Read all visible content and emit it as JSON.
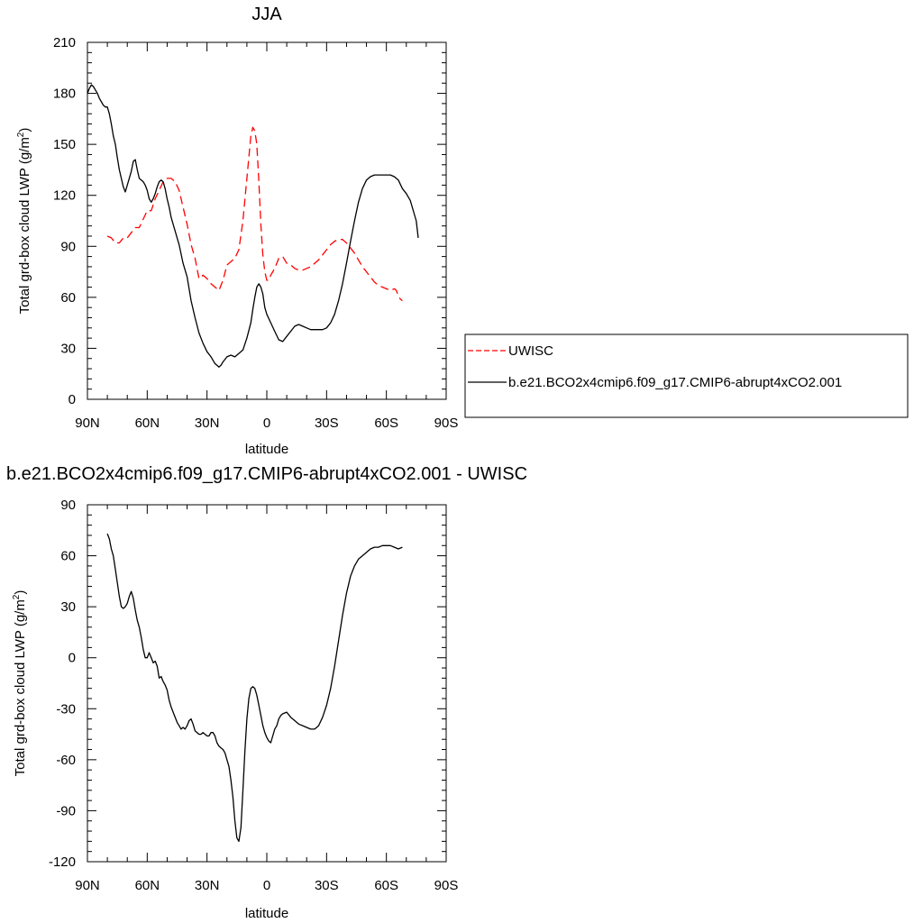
{
  "chart_data": [
    {
      "type": "line",
      "title": "JJA",
      "xlabel": "latitude",
      "ylabel_main": "Total grd-box cloud LWP (g/m",
      "ylabel_sup": "2",
      "ylabel_close": ")",
      "xlim": [
        90,
        -90
      ],
      "ylim": [
        0,
        210
      ],
      "x_ticks": [
        {
          "value": 90,
          "label": "90N"
        },
        {
          "value": 60,
          "label": "60N"
        },
        {
          "value": 30,
          "label": "30N"
        },
        {
          "value": 0,
          "label": "0"
        },
        {
          "value": -30,
          "label": "30S"
        },
        {
          "value": -60,
          "label": "60S"
        },
        {
          "value": -90,
          "label": "90S"
        }
      ],
      "y_ticks": [
        {
          "value": 0,
          "label": "0"
        },
        {
          "value": 30,
          "label": "30"
        },
        {
          "value": 60,
          "label": "60"
        },
        {
          "value": 90,
          "label": "90"
        },
        {
          "value": 120,
          "label": "120"
        },
        {
          "value": 150,
          "label": "150"
        },
        {
          "value": 180,
          "label": "180"
        },
        {
          "value": 210,
          "label": "210"
        }
      ],
      "legend": {
        "placement": "right"
      },
      "series": [
        {
          "name": "UWISC",
          "color": "#ff0000",
          "dash": "dashed",
          "x": [
            80,
            78,
            76,
            74,
            72,
            70,
            68,
            66,
            64,
            62,
            60,
            58,
            56,
            54,
            52,
            50,
            48,
            46,
            44,
            42,
            40,
            38,
            36,
            34,
            32,
            30,
            28,
            26,
            24,
            22,
            20,
            18,
            16,
            14,
            12,
            10,
            8,
            7,
            6,
            5,
            4,
            3,
            2,
            1,
            0,
            -1,
            -2,
            -4,
            -6,
            -8,
            -10,
            -12,
            -14,
            -16,
            -18,
            -20,
            -22,
            -24,
            -26,
            -28,
            -30,
            -32,
            -34,
            -36,
            -38,
            -40,
            -42,
            -44,
            -46,
            -48,
            -50,
            -52,
            -54,
            -56,
            -58,
            -60,
            -62,
            -64,
            -65,
            -66,
            -67,
            -68
          ],
          "values": [
            96,
            95,
            92,
            92,
            95,
            95,
            98,
            101,
            101,
            106,
            111,
            111,
            118,
            123,
            128,
            130,
            130,
            128,
            123,
            113,
            103,
            91,
            83,
            71,
            73,
            71,
            68,
            66,
            64,
            70,
            79,
            81,
            83,
            88,
            105,
            130,
            155,
            160,
            158,
            150,
            128,
            103,
            85,
            75,
            70,
            70,
            73,
            77,
            83,
            84,
            80,
            79,
            77,
            76,
            76,
            77,
            78,
            80,
            82,
            85,
            88,
            91,
            93,
            94,
            94,
            92,
            89,
            86,
            82,
            78,
            75,
            72,
            69,
            67,
            66,
            65,
            64,
            65,
            64,
            61,
            59,
            58
          ]
        },
        {
          "name": "b.e21.BCO2x4cmip6.f09_g17.CMIP6-abrupt4xCO2.001",
          "color": "#000000",
          "dash": "solid",
          "x": [
            90,
            89,
            88,
            87,
            86,
            85,
            84,
            83,
            82,
            81,
            80,
            79,
            78,
            77,
            76,
            75,
            74,
            73,
            72,
            71,
            70,
            69,
            68,
            67,
            66,
            65,
            64,
            63,
            62,
            61,
            60,
            59,
            58,
            57,
            56,
            55,
            54,
            53,
            52,
            51,
            50,
            49,
            48,
            47,
            46,
            45,
            44,
            42,
            40,
            38,
            36,
            34,
            32,
            30,
            28,
            26,
            25,
            24,
            23,
            22,
            20,
            18,
            16,
            14,
            12,
            10,
            8,
            7,
            6,
            5,
            4,
            3,
            2,
            1,
            0,
            -2,
            -4,
            -6,
            -8,
            -10,
            -12,
            -14,
            -16,
            -18,
            -20,
            -22,
            -24,
            -26,
            -28,
            -30,
            -32,
            -34,
            -36,
            -38,
            -40,
            -42,
            -44,
            -46,
            -48,
            -50,
            -52,
            -54,
            -56,
            -58,
            -60,
            -62,
            -64,
            -66,
            -68,
            -70,
            -72,
            -74,
            -75,
            -76
          ],
          "values": [
            180,
            183,
            185,
            184,
            182,
            180,
            177,
            175,
            173,
            172,
            172,
            168,
            162,
            155,
            150,
            142,
            135,
            130,
            125,
            122,
            126,
            130,
            134,
            140,
            141,
            135,
            130,
            129,
            128,
            126,
            123,
            118,
            116,
            118,
            121,
            125,
            128,
            129,
            128,
            124,
            118,
            113,
            107,
            103,
            99,
            95,
            91,
            80,
            72,
            58,
            48,
            39,
            33,
            28,
            25,
            21,
            20,
            19,
            20,
            22,
            25,
            26,
            25,
            27,
            29,
            36,
            45,
            53,
            60,
            66,
            68,
            66,
            62,
            54,
            50,
            45,
            40,
            35,
            34,
            37,
            40,
            43,
            44,
            43,
            42,
            41,
            41,
            41,
            41,
            42,
            45,
            50,
            58,
            68,
            80,
            93,
            105,
            116,
            124,
            129,
            131,
            132,
            132,
            132,
            132,
            132,
            131,
            129,
            124,
            121,
            117,
            109,
            105,
            95
          ]
        }
      ]
    },
    {
      "type": "line",
      "title": "b.e21.BCO2x4cmip6.f09_g17.CMIP6-abrupt4xCO2.001 - UWISC",
      "xlabel": "latitude",
      "ylabel_main": "Total grd-box cloud LWP (g/m",
      "ylabel_sup": "2",
      "ylabel_close": ")",
      "xlim": [
        90,
        -90
      ],
      "ylim": [
        -120,
        90
      ],
      "x_ticks": [
        {
          "value": 90,
          "label": "90N"
        },
        {
          "value": 60,
          "label": "60N"
        },
        {
          "value": 30,
          "label": "30N"
        },
        {
          "value": 0,
          "label": "0"
        },
        {
          "value": -30,
          "label": "30S"
        },
        {
          "value": -60,
          "label": "60S"
        },
        {
          "value": -90,
          "label": "90S"
        }
      ],
      "y_ticks": [
        {
          "value": -120,
          "label": "-120"
        },
        {
          "value": -90,
          "label": "-90"
        },
        {
          "value": -60,
          "label": "-60"
        },
        {
          "value": -30,
          "label": "-30"
        },
        {
          "value": 0,
          "label": "0"
        },
        {
          "value": 30,
          "label": "30"
        },
        {
          "value": 60,
          "label": "60"
        },
        {
          "value": 90,
          "label": "90"
        }
      ],
      "series": [
        {
          "name": "",
          "color": "#000000",
          "dash": "solid",
          "x": [
            80,
            79,
            78,
            77,
            76,
            75,
            74,
            73,
            72,
            71,
            70,
            69,
            68,
            67,
            66,
            65,
            64,
            63,
            62,
            61,
            60,
            59,
            58,
            57,
            56,
            55,
            54,
            53,
            52,
            51,
            50,
            49,
            48,
            47,
            46,
            45,
            44,
            43,
            42,
            41,
            40,
            39,
            38,
            37,
            36,
            35,
            34,
            33,
            32,
            31,
            30,
            29,
            28,
            27,
            26,
            25,
            24,
            23,
            22,
            21,
            20,
            19,
            18,
            17,
            16,
            15,
            14,
            13,
            12,
            11,
            10,
            9,
            8,
            7,
            6,
            5,
            4,
            3,
            2,
            1,
            0,
            -1,
            -2,
            -3,
            -4,
            -5,
            -6,
            -7,
            -8,
            -10,
            -12,
            -14,
            -16,
            -18,
            -20,
            -22,
            -24,
            -26,
            -28,
            -30,
            -32,
            -34,
            -36,
            -38,
            -40,
            -42,
            -44,
            -46,
            -48,
            -50,
            -52,
            -54,
            -56,
            -58,
            -60,
            -62,
            -64,
            -66,
            -68
          ],
          "values": [
            73,
            70,
            64,
            60,
            52,
            44,
            36,
            30,
            29,
            30,
            32,
            36,
            39,
            35,
            28,
            22,
            18,
            12,
            5,
            0,
            0,
            3,
            0,
            -3,
            -2,
            -5,
            -12,
            -11,
            -14,
            -16,
            -19,
            -25,
            -29,
            -32,
            -35,
            -38,
            -40,
            -42,
            -41,
            -42,
            -40,
            -37,
            -36,
            -39,
            -43,
            -44,
            -45,
            -45,
            -44,
            -45,
            -46,
            -46,
            -44,
            -44,
            -46,
            -50,
            -52,
            -53,
            -54,
            -56,
            -60,
            -64,
            -72,
            -82,
            -96,
            -106,
            -108,
            -100,
            -78,
            -55,
            -36,
            -24,
            -18,
            -17,
            -18,
            -22,
            -28,
            -34,
            -40,
            -44,
            -47,
            -49,
            -50,
            -46,
            -42,
            -40,
            -36,
            -34,
            -33,
            -32,
            -35,
            -37,
            -39,
            -40,
            -41,
            -42,
            -42,
            -40,
            -35,
            -28,
            -18,
            -5,
            10,
            25,
            38,
            48,
            54,
            58,
            60,
            62,
            64,
            65,
            65,
            66,
            66,
            66,
            65,
            64,
            65
          ]
        }
      ]
    }
  ],
  "colors": {
    "uwisc": "#ff0000",
    "model": "#000000"
  }
}
